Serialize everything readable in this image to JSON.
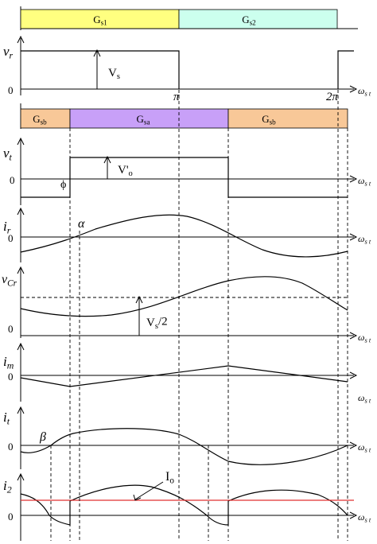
{
  "colors": {
    "gs1": "#FFFF80",
    "gs2": "#CCFFEE",
    "gsb": "#F8C898",
    "gsa": "#C8A0F8",
    "io_line": "#E03030"
  },
  "gate_bar_top": {
    "gs1": "G_s1",
    "gs2": "G_s2"
  },
  "gate_bar_mid": {
    "gsb_left": "G_sb",
    "gsa": "G_sa",
    "gsb_right": "G_sb"
  },
  "axis_labels": {
    "vr": "v_r",
    "vt": "v_t",
    "ir": "i_r",
    "vcr": "v_Cr",
    "im": "i_m",
    "it": "i_t",
    "i2": "i_2",
    "x": "ω_s t"
  },
  "zero": "0",
  "ticks": {
    "pi": "π",
    "two_pi": "2π"
  },
  "annotations": {
    "vs": "V_s",
    "vo": "V'_o",
    "phi": "ϕ",
    "alpha": "α",
    "vs_half": "V_s/2",
    "beta": "β",
    "io": "I_o"
  }
}
